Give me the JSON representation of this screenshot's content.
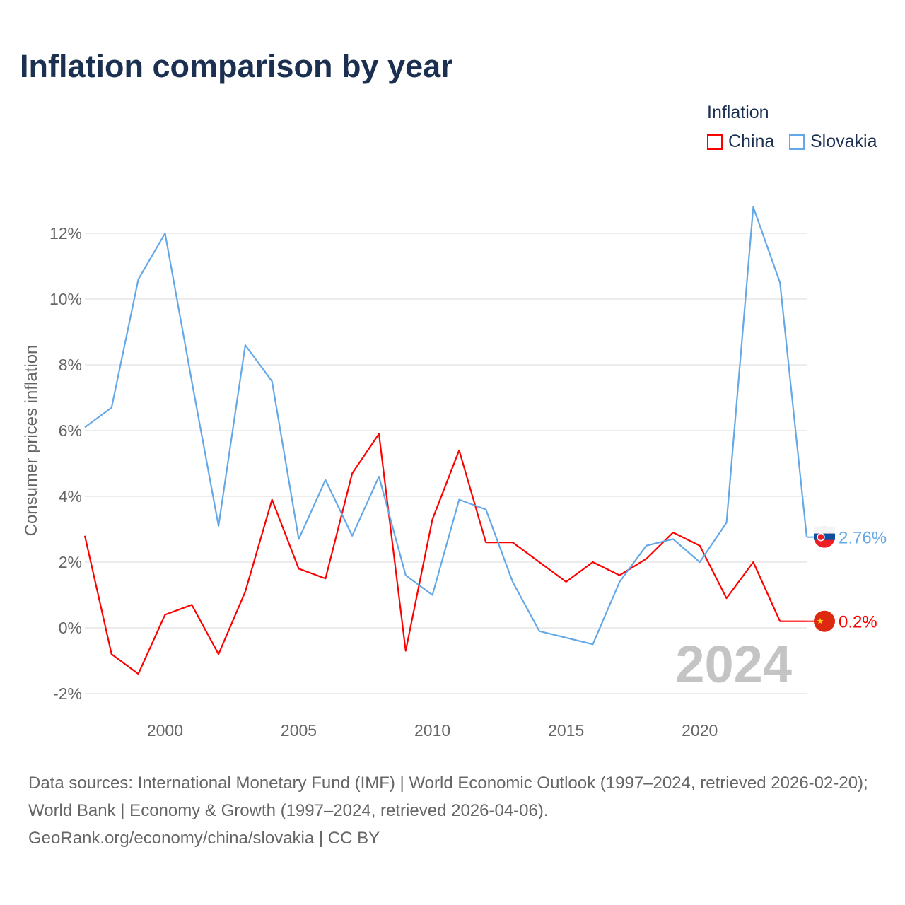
{
  "title": "Inflation comparison by year",
  "legend": {
    "title": "Inflation",
    "items": [
      {
        "label": "China",
        "color": "#ff0000"
      },
      {
        "label": "Slovakia",
        "color": "#64a8e8"
      }
    ]
  },
  "footer": {
    "line1": "Data sources: International Monetary Fund (IMF) | World Economic Outlook (1997–2024, retrieved 2026-02-20); World Bank | Economy & Growth (1997–2024, retrieved 2026-04-06).",
    "line2": "GeoRank.org/economy/china/slovakia | CC BY"
  },
  "chart_data": {
    "type": "line",
    "title": "Inflation comparison by year",
    "ylabel": "Consumer prices inflation",
    "xlabel": "",
    "xlim": [
      1997,
      2024
    ],
    "ylim": [
      -2.5,
      13
    ],
    "yticks": [
      -2,
      0,
      2,
      4,
      6,
      8,
      10,
      12
    ],
    "ytick_labels": [
      "-2%",
      "0%",
      "2%",
      "4%",
      "6%",
      "8%",
      "10%",
      "12%"
    ],
    "xticks": [
      2000,
      2005,
      2010,
      2015,
      2020
    ],
    "xtick_labels": [
      "2000",
      "2005",
      "2010",
      "2015",
      "2020"
    ],
    "grid": true,
    "legend_position": "top-right",
    "year_watermark": "2024",
    "x": [
      1997,
      1998,
      1999,
      2000,
      2001,
      2002,
      2003,
      2004,
      2005,
      2006,
      2007,
      2008,
      2009,
      2010,
      2011,
      2012,
      2013,
      2014,
      2015,
      2016,
      2017,
      2018,
      2019,
      2020,
      2021,
      2022,
      2023,
      2024
    ],
    "series": [
      {
        "name": "China",
        "color": "#ff0000",
        "end_label": "0.2%",
        "values": [
          2.8,
          -0.8,
          -1.4,
          0.4,
          0.7,
          -0.8,
          1.1,
          3.9,
          1.8,
          1.5,
          4.7,
          5.9,
          -0.7,
          3.3,
          5.4,
          2.6,
          2.6,
          2.0,
          1.4,
          2.0,
          1.6,
          2.1,
          2.9,
          2.5,
          0.9,
          2.0,
          0.2,
          0.2
        ]
      },
      {
        "name": "Slovakia",
        "color": "#64a8e8",
        "end_label": "2.76%",
        "values": [
          6.1,
          6.7,
          10.6,
          12.0,
          7.5,
          3.1,
          8.6,
          7.5,
          2.7,
          4.5,
          2.8,
          4.6,
          1.6,
          1.0,
          3.9,
          3.6,
          1.4,
          -0.1,
          -0.3,
          -0.5,
          1.4,
          2.5,
          2.7,
          2.0,
          3.2,
          12.8,
          10.5,
          2.76
        ]
      }
    ]
  }
}
